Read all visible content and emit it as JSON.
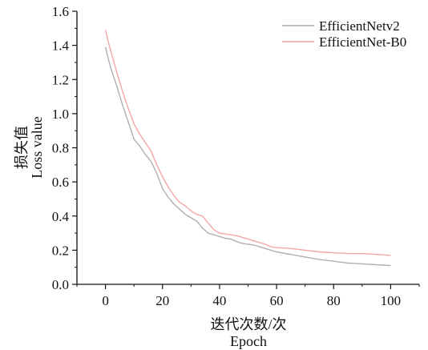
{
  "chart_data": {
    "type": "line",
    "xlabel_cn": "迭代次数/次",
    "xlabel_en": "Epoch",
    "ylabel_cn": "损失值",
    "ylabel_en": "Loss value",
    "xlim": [
      -10,
      110
    ],
    "ylim": [
      0.0,
      1.6
    ],
    "xticks": [
      0,
      20,
      40,
      60,
      80,
      100
    ],
    "yticks": [
      0.0,
      0.2,
      0.4,
      0.6,
      0.8,
      1.0,
      1.2,
      1.4,
      1.6
    ],
    "xtick_labels": [
      "0",
      "20",
      "40",
      "60",
      "80",
      "100"
    ],
    "ytick_labels": [
      "0.0",
      "0.2",
      "0.4",
      "0.6",
      "0.8",
      "1.0",
      "1.2",
      "1.4",
      "1.6"
    ],
    "legend_position": "top-right",
    "grid": false,
    "series": [
      {
        "name": "EfficientNetv2",
        "color": "#b0b0b0",
        "x": [
          0,
          1,
          2,
          4,
          6,
          8,
          10,
          12,
          14,
          16,
          18,
          20,
          22,
          24,
          26,
          28,
          30,
          32,
          34,
          36,
          38,
          40,
          42,
          44,
          46,
          48,
          50,
          52,
          54,
          56,
          58,
          60,
          65,
          70,
          75,
          80,
          85,
          90,
          95,
          100
        ],
        "y": [
          1.39,
          1.32,
          1.26,
          1.16,
          1.05,
          0.95,
          0.85,
          0.81,
          0.76,
          0.72,
          0.65,
          0.56,
          0.51,
          0.47,
          0.44,
          0.41,
          0.39,
          0.37,
          0.33,
          0.3,
          0.29,
          0.28,
          0.27,
          0.265,
          0.25,
          0.24,
          0.235,
          0.23,
          0.22,
          0.21,
          0.2,
          0.19,
          0.175,
          0.16,
          0.145,
          0.135,
          0.125,
          0.12,
          0.115,
          0.11
        ]
      },
      {
        "name": "EfficientNet-B0",
        "color": "#f4a6a6",
        "x": [
          0,
          1,
          2,
          4,
          6,
          8,
          10,
          12,
          14,
          16,
          18,
          20,
          22,
          24,
          26,
          28,
          30,
          32,
          34,
          36,
          38,
          40,
          42,
          44,
          46,
          48,
          50,
          52,
          54,
          56,
          58,
          60,
          65,
          70,
          75,
          80,
          85,
          90,
          95,
          100
        ],
        "y": [
          1.49,
          1.42,
          1.36,
          1.24,
          1.13,
          1.03,
          0.94,
          0.88,
          0.83,
          0.78,
          0.7,
          0.63,
          0.57,
          0.52,
          0.48,
          0.46,
          0.43,
          0.41,
          0.4,
          0.36,
          0.32,
          0.3,
          0.295,
          0.29,
          0.285,
          0.275,
          0.265,
          0.255,
          0.245,
          0.235,
          0.22,
          0.215,
          0.21,
          0.2,
          0.19,
          0.185,
          0.18,
          0.18,
          0.175,
          0.17
        ]
      }
    ]
  }
}
